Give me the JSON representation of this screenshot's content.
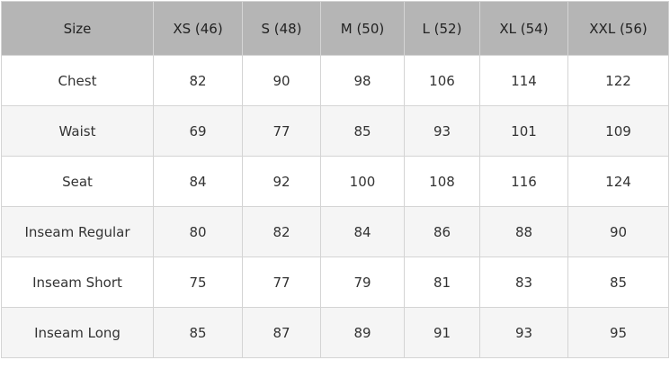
{
  "table": {
    "header": [
      "Size",
      "XS (46)",
      "S (48)",
      "M (50)",
      "L (52)",
      "XL (54)",
      "XXL (56)"
    ],
    "rows": [
      [
        "Chest",
        82,
        90,
        98,
        106,
        114,
        122
      ],
      [
        "Waist",
        69,
        77,
        85,
        93,
        101,
        109
      ],
      [
        "Seat",
        84,
        92,
        100,
        108,
        116,
        124
      ],
      [
        "Inseam Regular",
        80,
        82,
        84,
        86,
        88,
        90
      ],
      [
        "Inseam Short",
        75,
        77,
        79,
        81,
        83,
        85
      ],
      [
        "Inseam Long",
        85,
        87,
        89,
        91,
        93,
        95
      ]
    ]
  }
}
